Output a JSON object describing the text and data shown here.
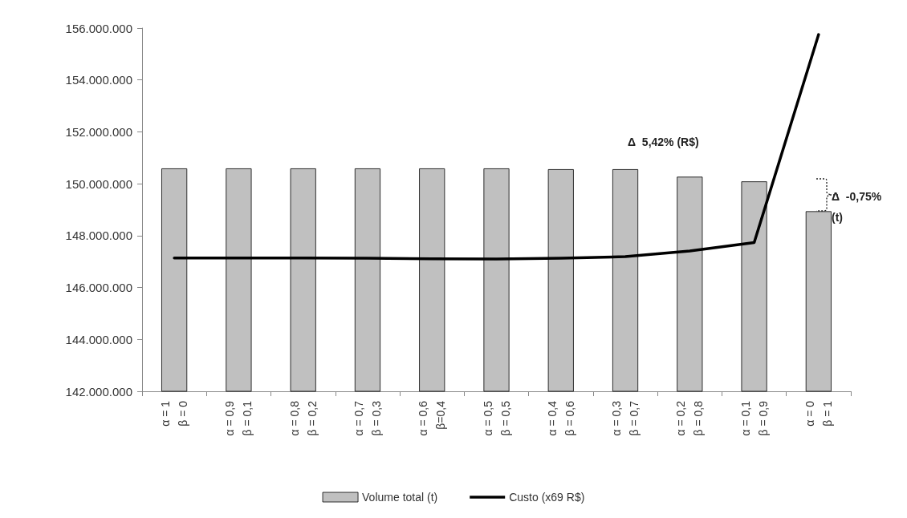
{
  "chart_data": {
    "type": "bar",
    "categories": [
      "α = 1\nβ = 0",
      "α = 0,9\nβ = 0,1",
      "α = 0,8\nβ = 0,2",
      "α = 0,7\nβ = 0,3",
      "α = 0,6\nβ=0,4",
      "α = 0,5\nβ = 0,5",
      "α = 0,4\nβ = 0,6",
      "α = 0,3\nβ = 0,7",
      "α = 0,2\nβ = 0,8",
      "α = 0,1\nβ = 0,9",
      "α = 0\nβ = 1"
    ],
    "series": [
      {
        "name": "Volume total (t)",
        "color": "#c0c0c0",
        "values": [
          150590000,
          150590000,
          150590000,
          150590000,
          150590000,
          150590000,
          150560000,
          150560000,
          150270000,
          150090000,
          148940000
        ]
      },
      {
        "name": "Custo (x69 R$)",
        "type": "line",
        "color": "#000000",
        "values": [
          147140000,
          147140000,
          147140000,
          147130000,
          147110000,
          147100000,
          147130000,
          147190000,
          147410000,
          147730000,
          155750000
        ]
      }
    ],
    "ylim": [
      142000000,
      156000000
    ],
    "yticks": [
      {
        "value": 142000000,
        "label": "142.000.000"
      },
      {
        "value": 144000000,
        "label": "144.000.000"
      },
      {
        "value": 146000000,
        "label": "146.000.000"
      },
      {
        "value": 148000000,
        "label": "148.000.000"
      },
      {
        "value": 150000000,
        "label": "150.000.000"
      },
      {
        "value": 152000000,
        "label": "152.000.000"
      },
      {
        "value": 154000000,
        "label": "154.000.000"
      },
      {
        "value": 156000000,
        "label": "156.000.000"
      }
    ],
    "annotations": [
      "Δ  5,42% (R$)",
      "Δ  -0,75% (t)"
    ],
    "grid": false,
    "legend": "bottom",
    "marker": "none",
    "line_style": "solid"
  }
}
